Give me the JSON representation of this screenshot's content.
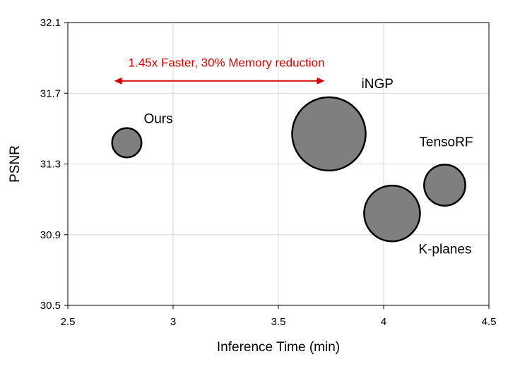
{
  "chart_data": {
    "type": "scatter",
    "xlabel": "Inference Time (min)",
    "ylabel": "PSNR",
    "xlim": [
      2.5,
      4.5
    ],
    "ylim": [
      30.5,
      32.1
    ],
    "xticks": [
      "2.5",
      "3",
      "3.5",
      "4",
      "4.5"
    ],
    "yticks": [
      "30.5",
      "30.9",
      "31.3",
      "31.7",
      "32.1"
    ],
    "grid": true,
    "legend": "none",
    "points": [
      {
        "name": "Ours",
        "x": 2.78,
        "y": 31.42,
        "size": 0.4
      },
      {
        "name": "iNGP",
        "x": 3.74,
        "y": 31.47,
        "size": 1.0
      },
      {
        "name": "TensoRF",
        "x": 4.29,
        "y": 31.18,
        "size": 0.56
      },
      {
        "name": "K-planes",
        "x": 4.04,
        "y": 31.02,
        "size": 0.76
      }
    ],
    "annotation": {
      "text": "1.45x Faster, 30% Memory reduction",
      "x_from": 2.72,
      "x_to": 3.72,
      "y": 31.77,
      "color": "#d40000"
    },
    "colors": {
      "bubble_fill": "#7f7f7f",
      "bubble_stroke": "#000000",
      "grid": "#d9d9d9",
      "axis": "#000000"
    }
  }
}
